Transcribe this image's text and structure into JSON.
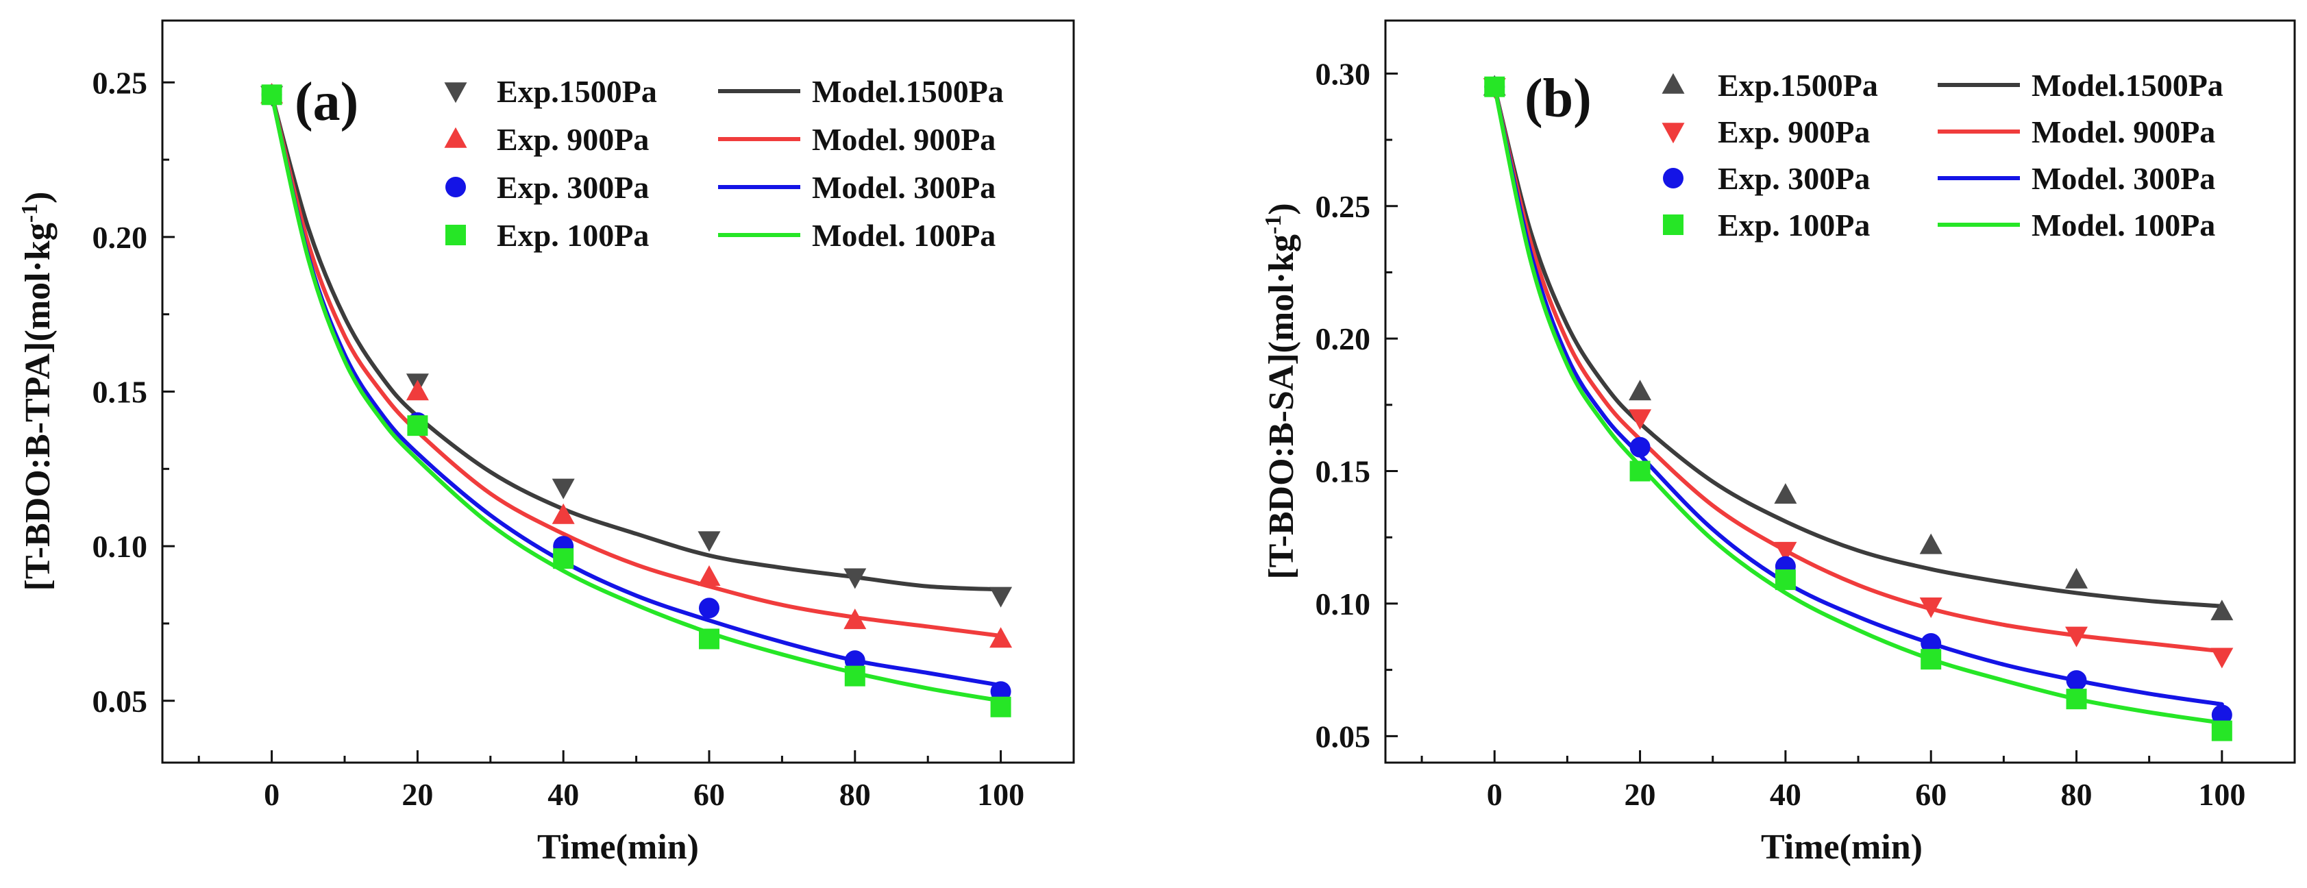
{
  "chart_data": [
    {
      "type": "scatter",
      "panel_label": "(a)",
      "xlabel": "Time(min)",
      "ylabel": "[T-BDO:B-TPA](mol·kg",
      "ylabel_sup": "-1",
      "ylabel_close": ")",
      "xlim": [
        -15,
        110
      ],
      "ylim": [
        0.03,
        0.27
      ],
      "xticks": [
        0,
        20,
        40,
        60,
        80,
        100
      ],
      "xtick_labels": [
        "0",
        "20",
        "40",
        "60",
        "80",
        "100"
      ],
      "yticks": [
        0.05,
        0.1,
        0.15,
        0.2,
        0.25
      ],
      "ytick_labels": [
        "0.05",
        "0.10",
        "0.15",
        "0.20",
        "0.25"
      ],
      "legend_position": "top-right",
      "series": [
        {
          "name": "Exp.1500Pa",
          "kind": "marker",
          "marker": "triangle-down",
          "color": "#4a4a4a",
          "x": [
            0,
            20,
            40,
            60,
            80,
            100
          ],
          "y": [
            0.246,
            0.153,
            0.119,
            0.102,
            0.09,
            0.084
          ]
        },
        {
          "name": "Exp. 900Pa",
          "kind": "marker",
          "marker": "triangle-up",
          "color": "#f03c3c",
          "x": [
            0,
            20,
            40,
            60,
            80,
            100
          ],
          "y": [
            0.246,
            0.15,
            0.11,
            0.09,
            0.076,
            0.07
          ]
        },
        {
          "name": "Exp. 300Pa",
          "kind": "marker",
          "marker": "circle",
          "color": "#1414e6",
          "x": [
            0,
            20,
            40,
            60,
            80,
            100
          ],
          "y": [
            0.246,
            0.14,
            0.1,
            0.08,
            0.063,
            0.053
          ]
        },
        {
          "name": "Exp. 100Pa",
          "kind": "marker",
          "marker": "square",
          "color": "#26e626",
          "x": [
            0,
            20,
            40,
            60,
            80,
            100
          ],
          "y": [
            0.246,
            0.139,
            0.096,
            0.07,
            0.058,
            0.048
          ]
        },
        {
          "name": "Model.1500Pa",
          "kind": "line",
          "color": "#3c3c3c",
          "x": [
            0,
            5,
            10,
            15,
            20,
            30,
            40,
            50,
            60,
            70,
            80,
            90,
            100
          ],
          "y": [
            0.246,
            0.203,
            0.174,
            0.155,
            0.142,
            0.124,
            0.112,
            0.104,
            0.097,
            0.093,
            0.09,
            0.087,
            0.086
          ]
        },
        {
          "name": "Model. 900Pa",
          "kind": "line",
          "color": "#f03c3c",
          "x": [
            0,
            5,
            10,
            15,
            20,
            30,
            40,
            50,
            60,
            70,
            80,
            90,
            100
          ],
          "y": [
            0.246,
            0.198,
            0.168,
            0.15,
            0.137,
            0.117,
            0.104,
            0.094,
            0.087,
            0.081,
            0.077,
            0.074,
            0.071
          ]
        },
        {
          "name": "Model. 300Pa",
          "kind": "line",
          "color": "#1414e6",
          "x": [
            0,
            5,
            10,
            15,
            20,
            30,
            40,
            50,
            60,
            70,
            80,
            90,
            100
          ],
          "y": [
            0.246,
            0.194,
            0.162,
            0.143,
            0.13,
            0.11,
            0.095,
            0.084,
            0.076,
            0.069,
            0.063,
            0.059,
            0.055
          ]
        },
        {
          "name": "Model. 100Pa",
          "kind": "line",
          "color": "#26e626",
          "x": [
            0,
            5,
            10,
            15,
            20,
            30,
            40,
            50,
            60,
            70,
            80,
            90,
            100
          ],
          "y": [
            0.246,
            0.193,
            0.16,
            0.141,
            0.128,
            0.107,
            0.092,
            0.081,
            0.072,
            0.065,
            0.059,
            0.054,
            0.05
          ]
        }
      ]
    },
    {
      "type": "scatter",
      "panel_label": "(b)",
      "xlabel": "Time(min)",
      "ylabel": "[T-BDO:B-SA](mol·kg",
      "ylabel_sup": "-1",
      "ylabel_close": ")",
      "xlim": [
        -15,
        110
      ],
      "ylim": [
        0.04,
        0.32
      ],
      "xticks": [
        0,
        20,
        40,
        60,
        80,
        100
      ],
      "xtick_labels": [
        "0",
        "20",
        "40",
        "60",
        "80",
        "100"
      ],
      "yticks": [
        0.05,
        0.1,
        0.15,
        0.2,
        0.25,
        0.3
      ],
      "ytick_labels": [
        "0.05",
        "0.10",
        "0.15",
        "0.20",
        "0.25",
        "0.30"
      ],
      "legend_position": "top-right",
      "series": [
        {
          "name": "Exp.1500Pa",
          "kind": "marker",
          "marker": "triangle-up",
          "color": "#4a4a4a",
          "x": [
            0,
            20,
            40,
            60,
            80,
            100
          ],
          "y": [
            0.295,
            0.18,
            0.141,
            0.122,
            0.109,
            0.097
          ]
        },
        {
          "name": "Exp. 900Pa",
          "kind": "marker",
          "marker": "triangle-down",
          "color": "#f03c3c",
          "x": [
            0,
            20,
            40,
            60,
            80,
            100
          ],
          "y": [
            0.295,
            0.17,
            0.12,
            0.099,
            0.088,
            0.08
          ]
        },
        {
          "name": "Exp. 300Pa",
          "kind": "marker",
          "marker": "circle",
          "color": "#1414e6",
          "x": [
            0,
            20,
            40,
            60,
            80,
            100
          ],
          "y": [
            0.295,
            0.159,
            0.114,
            0.085,
            0.071,
            0.058
          ]
        },
        {
          "name": "Exp. 100Pa",
          "kind": "marker",
          "marker": "square",
          "color": "#26e626",
          "x": [
            0,
            20,
            40,
            60,
            80,
            100
          ],
          "y": [
            0.295,
            0.15,
            0.109,
            0.079,
            0.064,
            0.052
          ]
        },
        {
          "name": "Model.1500Pa",
          "kind": "line",
          "color": "#3c3c3c",
          "x": [
            0,
            5,
            10,
            15,
            20,
            30,
            40,
            50,
            60,
            70,
            80,
            90,
            100
          ],
          "y": [
            0.295,
            0.24,
            0.205,
            0.183,
            0.168,
            0.146,
            0.131,
            0.12,
            0.113,
            0.108,
            0.104,
            0.101,
            0.099
          ]
        },
        {
          "name": "Model. 900Pa",
          "kind": "line",
          "color": "#f03c3c",
          "x": [
            0,
            5,
            10,
            15,
            20,
            30,
            40,
            50,
            60,
            70,
            80,
            90,
            100
          ],
          "y": [
            0.295,
            0.236,
            0.199,
            0.177,
            0.162,
            0.137,
            0.12,
            0.107,
            0.098,
            0.092,
            0.088,
            0.085,
            0.082
          ]
        },
        {
          "name": "Model. 300Pa",
          "kind": "line",
          "color": "#1414e6",
          "x": [
            0,
            5,
            10,
            15,
            20,
            30,
            40,
            50,
            60,
            70,
            80,
            90,
            100
          ],
          "y": [
            0.295,
            0.232,
            0.193,
            0.171,
            0.156,
            0.128,
            0.108,
            0.095,
            0.085,
            0.077,
            0.071,
            0.066,
            0.062
          ]
        },
        {
          "name": "Model. 100Pa",
          "kind": "line",
          "color": "#26e626",
          "x": [
            0,
            5,
            10,
            15,
            20,
            30,
            40,
            50,
            60,
            70,
            80,
            90,
            100
          ],
          "y": [
            0.295,
            0.229,
            0.19,
            0.168,
            0.152,
            0.124,
            0.104,
            0.09,
            0.079,
            0.071,
            0.064,
            0.059,
            0.055
          ]
        }
      ]
    }
  ]
}
